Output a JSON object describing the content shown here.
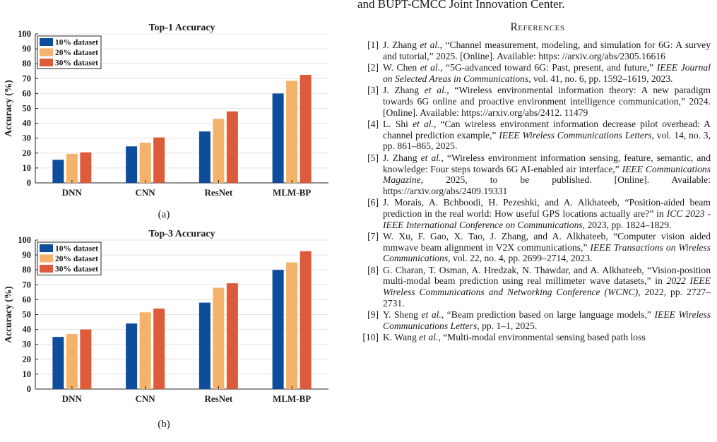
{
  "top_clip": "and BUPT-CMCC Joint Innovation Center.",
  "figure": {
    "caption_a": "(a)",
    "caption_b": "(b)"
  },
  "chart_data": [
    {
      "type": "bar",
      "title": "Top-1 Accuracy",
      "ylabel": "Accuracy (%)",
      "xlabel": "",
      "categories": [
        "DNN",
        "CNN",
        "ResNet",
        "MLM-BP"
      ],
      "series": [
        {
          "name": "10% dataset",
          "color": "#0d4d9c",
          "values": [
            15.5,
            24.5,
            34.5,
            60
          ]
        },
        {
          "name": "20% dataset",
          "color": "#f5b26b",
          "values": [
            19.5,
            27,
            43,
            68.5
          ]
        },
        {
          "name": "30% dataset",
          "color": "#dd5a3b",
          "values": [
            20.5,
            30.5,
            48,
            72.5
          ]
        }
      ],
      "ylim": [
        0,
        100
      ],
      "yticks": [
        0,
        10,
        20,
        30,
        40,
        50,
        60,
        70,
        80,
        90,
        100
      ],
      "grid": true,
      "legend": "top-left"
    },
    {
      "type": "bar",
      "title": "Top-3 Accuracy",
      "ylabel": "Accuracy (%)",
      "xlabel": "",
      "categories": [
        "DNN",
        "CNN",
        "ResNet",
        "MLM-BP"
      ],
      "series": [
        {
          "name": "10% dataset",
          "color": "#0d4d9c",
          "values": [
            35,
            44,
            58,
            80
          ]
        },
        {
          "name": "20% dataset",
          "color": "#f5b26b",
          "values": [
            37,
            51.5,
            68,
            85
          ]
        },
        {
          "name": "30% dataset",
          "color": "#dd5a3b",
          "values": [
            40,
            54,
            71,
            92.5
          ]
        }
      ],
      "ylim": [
        0,
        100
      ],
      "yticks": [
        0,
        10,
        20,
        30,
        40,
        50,
        60,
        70,
        80,
        90,
        100
      ],
      "grid": true,
      "legend": "top-left"
    }
  ],
  "references": {
    "title": "References",
    "items": [
      {
        "num": "[1]",
        "html": "J. Zhang <i>et al.</i>, “Channel measurement, modeling, and simulation for 6G: A survey and tutorial,” 2025. [Online]. Available: https: //arxiv.org/abs/2305.16616"
      },
      {
        "num": "[2]",
        "html": "W. Chen <i>et al.</i>, “5G-advanced toward 6G: Past, present, and future,” <i>IEEE Journal on Selected Areas in Communications</i>, vol. 41, no. 6, pp. 1592–1619, 2023."
      },
      {
        "num": "[3]",
        "html": "J. Zhang <i>et al.</i>, “Wireless environmental information theory: A new paradigm towards 6G online and proactive environment intelligence communication,” 2024. [Online]. Available: https://arxiv.org/abs/2412. 11479"
      },
      {
        "num": "[4]",
        "html": "L. Shi <i>et al.</i>, “Can wireless environment information decrease pilot overhead: A channel prediction example,” <i>IEEE Wireless Communications Letters</i>, vol. 14, no. 3, pp. 861–865, 2025."
      },
      {
        "num": "[5]",
        "html": "J. Zhang <i>et al.</i>, “Wireless environment information sensing, feature, semantic, and knowledge: Four steps towards 6G AI-enabled air interface,” <i>IEEE Communications Magazine</i>, 2025, to be published. [Online]. Available: https://arxiv.org/abs/2409.19331"
      },
      {
        "num": "[6]",
        "html": "J. Morais, A. Bchboodi, H. Pezeshki, and A. Alkhateeb, “Position-aided beam prediction in the real world: How useful GPS locations actually are?” in <i>ICC 2023 - IEEE International Conference on Communications</i>, 2023, pp. 1824–1829."
      },
      {
        "num": "[7]",
        "html": "W. Xu, F. Gao, X. Tao, J. Zhang, and A. Alkhateeb, “Computer vision aided mmwave beam alignment in V2X communications,” <i>IEEE Transactions on Wireless Communications</i>, vol. 22, no. 4, pp. 2699–2714, 2023."
      },
      {
        "num": "[8]",
        "html": "G. Charan, T. Osman, A. Hredzak, N. Thawdar, and A. Alkhateeb, “Vision-position multi-modal beam prediction using real millimeter wave datasets,” in <i>2022 IEEE Wireless Communications and Networking Conference (WCNC)</i>, 2022, pp. 2727–2731."
      },
      {
        "num": "[9]",
        "html": "Y. Sheng <i>et al.</i>, “Beam prediction based on large language models,” <i>IEEE Wireless Communications Letters</i>, pp. 1–1, 2025."
      },
      {
        "num": "[10]",
        "html": "K. Wang <i>et al.</i>, “Multi-modal environmental sensing based path loss"
      }
    ]
  }
}
